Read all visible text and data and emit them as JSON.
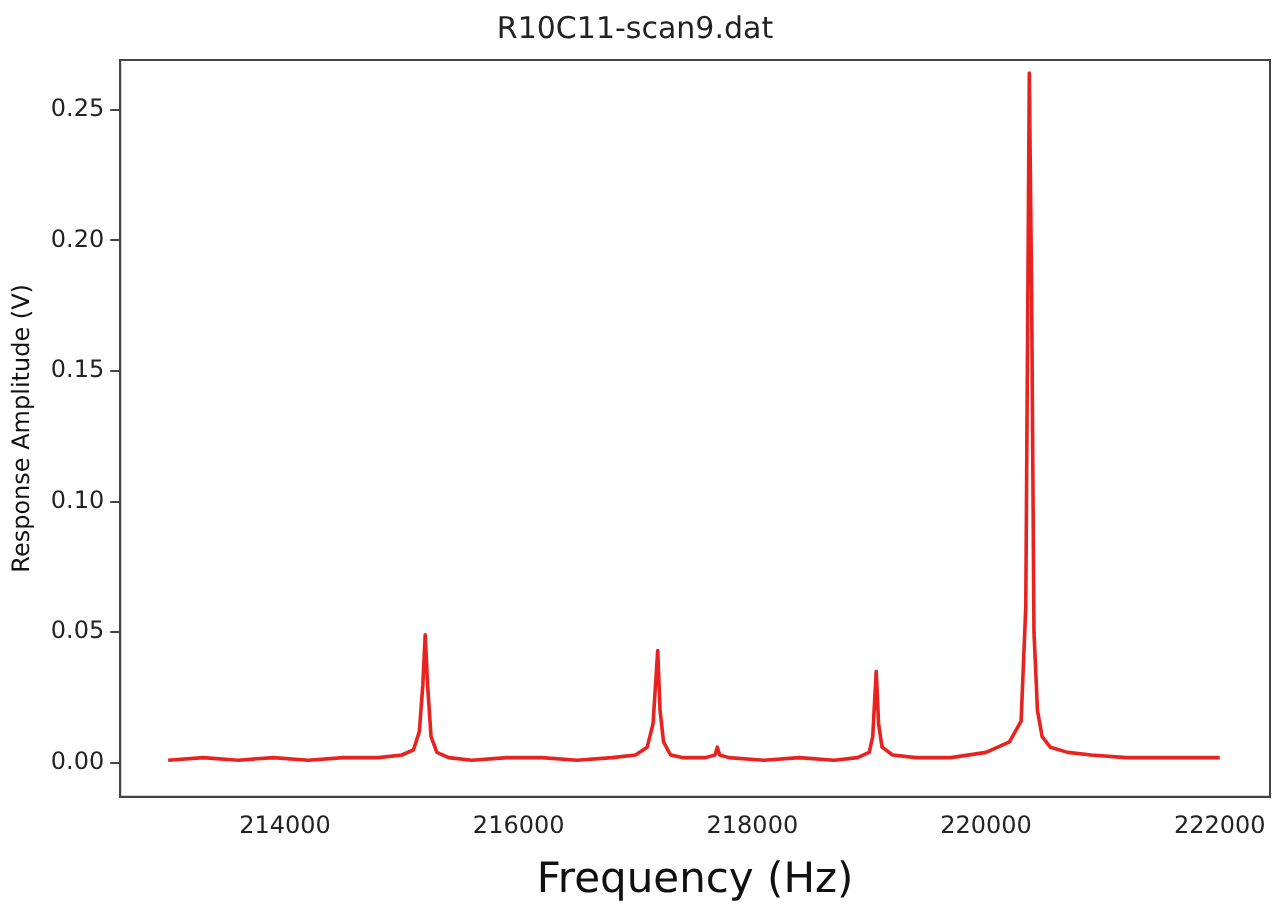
{
  "chart_data": {
    "type": "line",
    "title": "R10C11-scan9.dat",
    "xlabel": "Frequency (Hz)",
    "ylabel": "Response Amplitude (V)",
    "x": [
      213000,
      213300,
      213600,
      213900,
      214200,
      214500,
      214800,
      215000,
      215100,
      215150,
      215180,
      215200,
      215220,
      215250,
      215300,
      215400,
      215600,
      215900,
      216200,
      216500,
      216800,
      217000,
      217100,
      217150,
      217190,
      217210,
      217240,
      217300,
      217400,
      217600,
      217680,
      217700,
      217720,
      217800,
      218100,
      218400,
      218700,
      218900,
      219000,
      219030,
      219060,
      219080,
      219110,
      219200,
      219400,
      219700,
      220000,
      220200,
      220300,
      220340,
      220370,
      220390,
      220410,
      220440,
      220480,
      220550,
      220700,
      220900,
      221200,
      221500,
      221800,
      222000
    ],
    "series": [
      {
        "color": "#e8231f",
        "values": [
          0.001,
          0.002,
          0.001,
          0.002,
          0.001,
          0.002,
          0.002,
          0.003,
          0.005,
          0.012,
          0.03,
          0.049,
          0.03,
          0.01,
          0.004,
          0.002,
          0.001,
          0.002,
          0.002,
          0.001,
          0.002,
          0.003,
          0.006,
          0.015,
          0.043,
          0.02,
          0.008,
          0.003,
          0.002,
          0.002,
          0.003,
          0.006,
          0.003,
          0.002,
          0.001,
          0.002,
          0.001,
          0.002,
          0.004,
          0.01,
          0.035,
          0.015,
          0.006,
          0.003,
          0.002,
          0.002,
          0.004,
          0.008,
          0.016,
          0.06,
          0.264,
          0.18,
          0.05,
          0.02,
          0.01,
          0.006,
          0.004,
          0.003,
          0.002,
          0.002,
          0.002,
          0.002
        ]
      }
    ],
    "xlim": [
      212590,
      222430
    ],
    "ylim": [
      -0.013,
      0.269
    ],
    "xticks": [
      214000,
      216000,
      218000,
      220000,
      222000
    ],
    "yticks": [
      {
        "value": 0,
        "label": "0.00"
      },
      {
        "value": 0.05,
        "label": "0.05"
      },
      {
        "value": 0.1,
        "label": "0.10"
      },
      {
        "value": 0.15,
        "label": "0.15"
      },
      {
        "value": 0.2,
        "label": "0.20"
      },
      {
        "value": 0.25,
        "label": "0.25"
      }
    ],
    "grid": false,
    "legend": false,
    "marker": "none",
    "line_style": "solid"
  }
}
